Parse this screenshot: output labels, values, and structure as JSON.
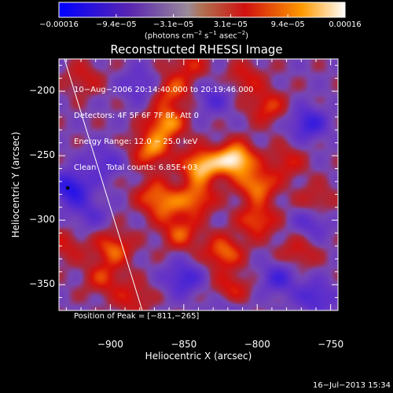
{
  "chart_data": {
    "type": "heatmap",
    "title": "Reconstructed RHESSI Image",
    "xlabel": "Heliocentric X (arcsec)",
    "ylabel": "Heliocentric Y (arcsec)",
    "xlim": [
      -935,
      -745
    ],
    "ylim": [
      -370,
      -175
    ],
    "x_ticks": [
      -900,
      -850,
      -800,
      -750
    ],
    "x_tick_labels": [
      "−900",
      "−850",
      "−800",
      "−750"
    ],
    "y_ticks": [
      -200,
      -250,
      -300,
      -350
    ],
    "y_tick_labels": [
      "−200",
      "−250",
      "−300",
      "−350"
    ],
    "colorbar": {
      "range": [
        -0.00016,
        0.00016
      ],
      "tick_labels": [
        "−0.00016",
        "−9.4e−05",
        "−3.1e−05",
        "3.1e−05",
        "9.4e−05",
        "0.00016"
      ],
      "unit_label_main": "(photons cm",
      "unit_label_sup1": "−2",
      "unit_label_s": " s",
      "unit_label_sup2": "−1",
      "unit_label_asec": " asec",
      "unit_label_sup3": "−2",
      "unit_label_end": ")"
    },
    "annotation_lines": [
      "10−Aug−2006 20:14:40.000 to 20:19:46.000",
      "Detectors: 4F 5F 6F 7F 8F, Att 0",
      "Energy Range: 12.0 − 25.0 keV",
      "Clean    Total counts: 6.85E+03"
    ],
    "peak_text": "Position of Peak = [−811,−265]",
    "peak": [
      -811,
      -265
    ],
    "blobs": [
      {
        "x": -815,
        "y": -253,
        "v": 1.0
      },
      {
        "x": -838,
        "y": -258,
        "v": 0.85
      },
      {
        "x": -800,
        "y": -273,
        "v": 0.65
      },
      {
        "x": -842,
        "y": -283,
        "v": 0.6
      },
      {
        "x": -862,
        "y": -290,
        "v": 0.4
      },
      {
        "x": -862,
        "y": -225,
        "v": 0.7
      },
      {
        "x": -858,
        "y": -200,
        "v": 0.5
      },
      {
        "x": -872,
        "y": -245,
        "v": 0.65
      },
      {
        "x": -800,
        "y": -300,
        "v": 0.55
      },
      {
        "x": -823,
        "y": -325,
        "v": 0.6
      },
      {
        "x": -818,
        "y": -355,
        "v": 0.5
      },
      {
        "x": -898,
        "y": -322,
        "v": 0.55
      },
      {
        "x": -905,
        "y": -345,
        "v": 0.4
      },
      {
        "x": -793,
        "y": -212,
        "v": 0.45
      },
      {
        "x": -780,
        "y": -255,
        "v": 0.35
      },
      {
        "x": -852,
        "y": -310,
        "v": 0.5
      },
      {
        "x": -870,
        "y": -280,
        "v": 0.45
      },
      {
        "x": -760,
        "y": -285,
        "v": 0.3
      },
      {
        "x": -772,
        "y": -325,
        "v": 0.35
      },
      {
        "x": -846,
        "y": -180,
        "v": 0.35
      },
      {
        "x": -918,
        "y": -190,
        "v": 0.3
      },
      {
        "x": -808,
        "y": -190,
        "v": 0.35
      },
      {
        "x": -930,
        "y": -320,
        "v": 0.3
      },
      {
        "x": -885,
        "y": -360,
        "v": 0.35
      },
      {
        "x": -760,
        "y": -360,
        "v": -0.45
      },
      {
        "x": -765,
        "y": -225,
        "v": -0.55
      },
      {
        "x": -927,
        "y": -275,
        "v": -0.7
      },
      {
        "x": -763,
        "y": -302,
        "v": -0.35
      },
      {
        "x": -850,
        "y": -345,
        "v": -0.5
      },
      {
        "x": -785,
        "y": -345,
        "v": -0.45
      },
      {
        "x": -880,
        "y": -195,
        "v": -0.35
      },
      {
        "x": -905,
        "y": -255,
        "v": -0.35
      },
      {
        "x": -830,
        "y": -205,
        "v": -0.35
      },
      {
        "x": -915,
        "y": -295,
        "v": -0.3
      },
      {
        "x": -820,
        "y": -365,
        "v": -0.3
      }
    ]
  },
  "footer": {
    "timestamp": "16−Jul−2013 15:34"
  },
  "colors": {
    "background": "#000000",
    "foreground": "#ffffff"
  }
}
